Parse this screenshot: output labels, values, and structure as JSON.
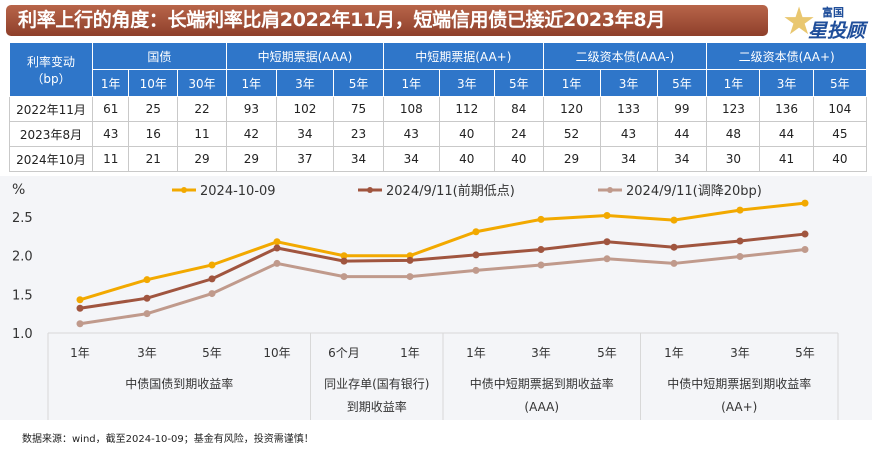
{
  "title": "利率上行的角度：长端利率比肩2022年11月，短端信用债已接近2023年8月",
  "logo": {
    "line1": "富国",
    "line2": "星投顾"
  },
  "table": {
    "corner": "利率变动（bp）",
    "groups": [
      "国债",
      "中短期票据(AAA)",
      "中短期票据(AA+)",
      "二级资本债(AAA-)",
      "二级资本债(AA+)"
    ],
    "group_spans": [
      3,
      3,
      3,
      3,
      3
    ],
    "tenors": [
      "1年",
      "10年",
      "30年",
      "1年",
      "3年",
      "5年",
      "1年",
      "3年",
      "5年",
      "1年",
      "3年",
      "5年",
      "1年",
      "3年",
      "5年"
    ],
    "rows": [
      {
        "label": "2022年11月",
        "values": [
          "61",
          "25",
          "22",
          "93",
          "102",
          "75",
          "108",
          "112",
          "84",
          "120",
          "133",
          "99",
          "123",
          "136",
          "104"
        ]
      },
      {
        "label": "2023年8月",
        "values": [
          "43",
          "16",
          "11",
          "42",
          "34",
          "23",
          "43",
          "40",
          "24",
          "52",
          "43",
          "44",
          "48",
          "44",
          "45"
        ]
      },
      {
        "label": "2024年10月",
        "values": [
          "11",
          "21",
          "29",
          "29",
          "37",
          "34",
          "34",
          "40",
          "40",
          "29",
          "34",
          "34",
          "30",
          "41",
          "40"
        ]
      }
    ]
  },
  "chart_data": {
    "type": "line",
    "ylabel": "%",
    "ylim": [
      1.0,
      2.7
    ],
    "yticks": [
      "1.0",
      "1.5",
      "2.0",
      "2.5"
    ],
    "categories": [
      "1年",
      "3年",
      "5年",
      "10年",
      "6个月",
      "1年",
      "1年",
      "3年",
      "5年",
      "1年",
      "3年",
      "5年"
    ],
    "groups": [
      {
        "label": "中债国债到期收益率",
        "count": 4
      },
      {
        "label": "同业存单(国有银行)到期收益率",
        "count": 2
      },
      {
        "label": "中债中短期票据到期收益率(AAA)",
        "count": 3
      },
      {
        "label": "中债中短期票据到期收益率(AA+)",
        "count": 3
      }
    ],
    "legend_position": "top",
    "series": [
      {
        "name": "2024-10-09",
        "color": "#f2a900",
        "values": [
          1.43,
          1.69,
          1.88,
          2.18,
          2.0,
          2.0,
          2.31,
          2.47,
          2.52,
          2.46,
          2.59,
          2.68
        ]
      },
      {
        "name": "2024/9/11(前期低点)",
        "color": "#a0553f",
        "values": [
          1.32,
          1.45,
          1.7,
          2.1,
          1.93,
          1.94,
          2.01,
          2.08,
          2.18,
          2.11,
          2.19,
          2.28
        ]
      },
      {
        "name": "2024/9/11(调降20bp)",
        "color": "#c09a8c",
        "values": [
          1.12,
          1.25,
          1.51,
          1.9,
          1.73,
          1.73,
          1.81,
          1.88,
          1.96,
          1.9,
          1.99,
          2.08
        ]
      }
    ]
  },
  "footer": "数据来源：wind，截至2024-10-09；基金有风险，投资需谨慎！"
}
